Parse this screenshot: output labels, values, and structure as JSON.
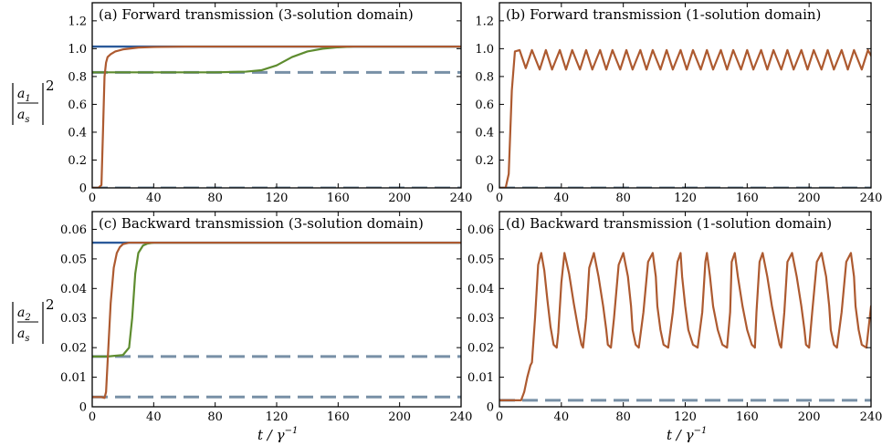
{
  "figure": {
    "xlabel_main": "t / γ",
    "xlabel_exp": "−1",
    "ylabel_top": {
      "num": "a",
      "num_sub": "1",
      "den": "a",
      "den_sub": "s",
      "power": "2"
    },
    "ylabel_bottom": {
      "num": "a",
      "num_sub": "2",
      "den": "a",
      "den_sub": "s",
      "power": "2"
    }
  },
  "colors": {
    "blue": "#2b5a9a",
    "green": "#5e8c2f",
    "brown": "#ad5a30",
    "dashed": "#7890a6"
  },
  "chart_data": [
    {
      "id": "a",
      "type": "line",
      "title": "(a) Forward transmission (3-solution domain)",
      "xlim": [
        0,
        240
      ],
      "ylim": [
        0,
        1.33
      ],
      "xticks": [
        0,
        40,
        80,
        120,
        160,
        200,
        240
      ],
      "yticks": [
        "0",
        "0.2",
        "0.4",
        "0.6",
        "0.8",
        "1.0",
        "1.2"
      ],
      "yticks_values": [
        0,
        0.2,
        0.4,
        0.6,
        0.8,
        1.0,
        1.2
      ],
      "hlines": [
        {
          "y": 1.015,
          "style": "solid",
          "color": "blue"
        },
        {
          "y": 0.83,
          "style": "dashed",
          "color": "dashed"
        },
        {
          "y": 0.0,
          "style": "dashed",
          "color": "dashed"
        }
      ],
      "series": [
        {
          "color": "green",
          "x": [
            0,
            20,
            40,
            60,
            80,
            100,
            110,
            120,
            130,
            140,
            150,
            160,
            170,
            180,
            240
          ],
          "y": [
            0.83,
            0.83,
            0.83,
            0.83,
            0.83,
            0.835,
            0.845,
            0.88,
            0.94,
            0.98,
            1.0,
            1.01,
            1.015,
            1.015,
            1.015
          ]
        },
        {
          "color": "brown",
          "x": [
            0,
            4,
            6,
            7,
            8,
            9,
            10,
            12,
            15,
            20,
            30,
            40,
            60,
            240
          ],
          "y": [
            0.0,
            0.0,
            0.02,
            0.4,
            0.8,
            0.9,
            0.94,
            0.96,
            0.98,
            0.995,
            1.008,
            1.012,
            1.015,
            1.015
          ]
        }
      ]
    },
    {
      "id": "b",
      "type": "line",
      "title": "(b) Forward transmission (1-solution domain)",
      "xlim": [
        0,
        240
      ],
      "ylim": [
        0,
        1.33
      ],
      "xticks": [
        0,
        40,
        80,
        120,
        160,
        200,
        240
      ],
      "yticks": [
        "0",
        "0.2",
        "0.4",
        "0.6",
        "0.8",
        "1.0",
        "1.2"
      ],
      "yticks_values": [
        0,
        0.2,
        0.4,
        0.6,
        0.8,
        1.0,
        1.2
      ],
      "hlines": [
        {
          "y": 0.0,
          "style": "dashed",
          "color": "dashed"
        }
      ],
      "series": [
        {
          "color": "brown",
          "x": [
            0,
            4,
            6,
            8,
            10,
            13,
            17,
            21,
            26,
            30,
            34,
            39,
            43,
            47,
            52,
            56,
            60,
            65,
            69,
            73,
            78,
            82,
            86,
            91,
            95,
            99,
            104,
            108,
            112,
            117,
            121,
            125,
            130,
            134,
            138,
            143,
            147,
            151,
            156,
            160,
            164,
            169,
            173,
            177,
            182,
            186,
            190,
            195,
            199,
            203,
            208,
            212,
            216,
            221,
            225,
            229,
            234,
            238,
            240
          ],
          "y": [
            0,
            0,
            0.1,
            0.7,
            0.98,
            0.99,
            0.86,
            0.99,
            0.85,
            0.99,
            0.85,
            0.99,
            0.85,
            0.99,
            0.85,
            0.99,
            0.85,
            0.99,
            0.85,
            0.99,
            0.85,
            0.99,
            0.85,
            0.99,
            0.85,
            0.99,
            0.85,
            0.99,
            0.85,
            0.99,
            0.85,
            0.99,
            0.85,
            0.99,
            0.85,
            0.99,
            0.85,
            0.99,
            0.85,
            0.99,
            0.85,
            0.99,
            0.85,
            0.99,
            0.85,
            0.99,
            0.85,
            0.99,
            0.85,
            0.99,
            0.85,
            0.99,
            0.85,
            0.99,
            0.85,
            0.99,
            0.85,
            0.99,
            0.95
          ]
        }
      ]
    },
    {
      "id": "c",
      "type": "line",
      "title": "(c) Backward transmission (3-solution domain)",
      "xlim": [
        0,
        240
      ],
      "ylim": [
        0,
        0.066
      ],
      "xticks": [
        0,
        40,
        80,
        120,
        160,
        200,
        240
      ],
      "yticks": [
        "0",
        "0.01",
        "0.02",
        "0.03",
        "0.04",
        "0.05",
        "0.06"
      ],
      "yticks_values": [
        0,
        0.01,
        0.02,
        0.03,
        0.04,
        0.05,
        0.06
      ],
      "hlines": [
        {
          "y": 0.0555,
          "style": "solid",
          "color": "blue"
        },
        {
          "y": 0.017,
          "style": "dashed",
          "color": "dashed"
        },
        {
          "y": 0.0033,
          "style": "dashed",
          "color": "dashed"
        }
      ],
      "series": [
        {
          "color": "green",
          "x": [
            0,
            10,
            20,
            24,
            26,
            28,
            30,
            33,
            36,
            40,
            60,
            240
          ],
          "y": [
            0.017,
            0.017,
            0.0175,
            0.02,
            0.03,
            0.045,
            0.052,
            0.0545,
            0.0552,
            0.0555,
            0.0555,
            0.0555
          ]
        },
        {
          "color": "brown",
          "x": [
            0,
            6,
            8,
            9,
            10,
            12,
            14,
            16,
            18,
            20,
            24,
            30,
            240
          ],
          "y": [
            0.0033,
            0.0033,
            0.003,
            0.005,
            0.015,
            0.035,
            0.047,
            0.052,
            0.054,
            0.055,
            0.0555,
            0.0555,
            0.0555
          ]
        }
      ]
    },
    {
      "id": "d",
      "type": "line",
      "title": "(d) Backward transmission (1-solution domain)",
      "xlim": [
        0,
        240
      ],
      "ylim": [
        0,
        0.066
      ],
      "xticks": [
        0,
        40,
        80,
        120,
        160,
        200,
        240
      ],
      "yticks": [
        "0",
        "0.01",
        "0.02",
        "0.03",
        "0.04",
        "0.05",
        "0.06"
      ],
      "yticks_values": [
        0,
        0.01,
        0.02,
        0.03,
        0.04,
        0.05,
        0.06
      ],
      "hlines": [
        {
          "y": 0.0022,
          "style": "dashed",
          "color": "dashed"
        }
      ],
      "series": [
        {
          "color": "brown",
          "x": [
            0,
            14,
            16,
            18,
            20,
            21,
            23,
            25,
            27,
            29,
            31,
            33,
            35,
            37,
            38,
            40,
            42,
            45,
            48,
            51,
            53,
            54,
            56,
            58,
            61,
            64,
            67,
            69,
            70,
            72,
            74,
            77,
            80,
            83,
            85,
            86,
            88,
            90,
            93,
            96,
            99,
            101,
            102,
            104,
            106,
            109,
            112,
            115,
            117,
            118,
            120,
            122,
            125,
            128,
            131,
            133,
            134,
            136,
            138,
            141,
            144,
            147,
            149,
            150,
            152,
            154,
            157,
            160,
            163,
            165,
            166,
            168,
            170,
            173,
            176,
            179,
            181,
            182,
            184,
            186,
            189,
            192,
            195,
            197,
            198,
            200,
            202,
            205,
            208,
            211,
            213,
            214,
            216,
            218,
            221,
            224,
            227,
            229,
            230,
            232,
            234,
            237,
            240
          ],
          "y": [
            0.0022,
            0.0022,
            0.005,
            0.01,
            0.014,
            0.015,
            0.03,
            0.048,
            0.052,
            0.046,
            0.036,
            0.027,
            0.021,
            0.02,
            0.025,
            0.042,
            0.052,
            0.045,
            0.035,
            0.026,
            0.021,
            0.02,
            0.03,
            0.047,
            0.052,
            0.044,
            0.034,
            0.026,
            0.021,
            0.02,
            0.03,
            0.048,
            0.052,
            0.044,
            0.034,
            0.026,
            0.021,
            0.02,
            0.032,
            0.049,
            0.052,
            0.044,
            0.034,
            0.026,
            0.021,
            0.02,
            0.032,
            0.049,
            0.052,
            0.044,
            0.034,
            0.026,
            0.021,
            0.02,
            0.032,
            0.049,
            0.052,
            0.044,
            0.034,
            0.026,
            0.021,
            0.02,
            0.032,
            0.049,
            0.052,
            0.044,
            0.034,
            0.026,
            0.021,
            0.02,
            0.032,
            0.049,
            0.052,
            0.044,
            0.034,
            0.026,
            0.021,
            0.02,
            0.032,
            0.049,
            0.052,
            0.044,
            0.034,
            0.026,
            0.021,
            0.02,
            0.032,
            0.049,
            0.052,
            0.044,
            0.034,
            0.026,
            0.021,
            0.02,
            0.032,
            0.049,
            0.052,
            0.044,
            0.034,
            0.026,
            0.021,
            0.02,
            0.034
          ]
        }
      ]
    }
  ]
}
